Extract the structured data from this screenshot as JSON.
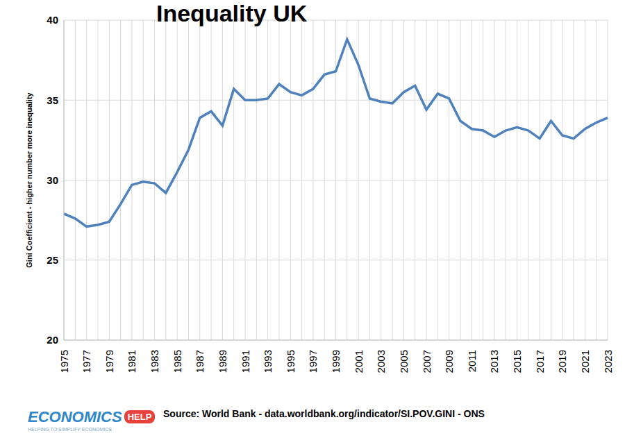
{
  "chart_data": {
    "type": "line",
    "title": "Inequality UK",
    "y_label": "Gini Coefficient - higher number more inequality",
    "source": "Source: World Bank - data.worldbank.org/indicator/SI.POV.GINI - ONS",
    "logo": {
      "text": "ECONOMICS",
      "badge": "HELP",
      "tagline": "HELPING TO SIMPLIFY ECONOMICS"
    },
    "categories": [
      "1975",
      null,
      "1977",
      null,
      "1979",
      null,
      "1981",
      null,
      "1983",
      null,
      "1985",
      null,
      "1987",
      null,
      "1989",
      null,
      "1991",
      null,
      "1993",
      null,
      "1995",
      null,
      "1997",
      null,
      "1999",
      null,
      "2001",
      null,
      "2003",
      null,
      "2005",
      null,
      "2007",
      null,
      "2009",
      null,
      "2011",
      null,
      "2013",
      null,
      "2015",
      null,
      "2017",
      null,
      "2019",
      null,
      "2021",
      null,
      "2023"
    ],
    "values": [
      27.9,
      27.6,
      27.1,
      27.2,
      27.4,
      28.5,
      29.7,
      29.9,
      29.8,
      29.2,
      30.5,
      31.9,
      33.9,
      34.3,
      33.4,
      35.7,
      35.0,
      35.0,
      35.1,
      36.0,
      35.5,
      35.3,
      35.7,
      36.6,
      36.8,
      38.8,
      37.2,
      35.1,
      34.9,
      34.8,
      35.5,
      35.9,
      34.4,
      35.4,
      35.1,
      33.7,
      33.2,
      33.1,
      32.7,
      33.1,
      33.3,
      33.1,
      32.6,
      33.7,
      32.8,
      32.6,
      33.2,
      33.6,
      33.9
    ],
    "color": "#4f81bd",
    "ylim": [
      20,
      40
    ],
    "yticks": [
      20,
      25,
      30,
      35,
      40
    ],
    "grid": true
  }
}
